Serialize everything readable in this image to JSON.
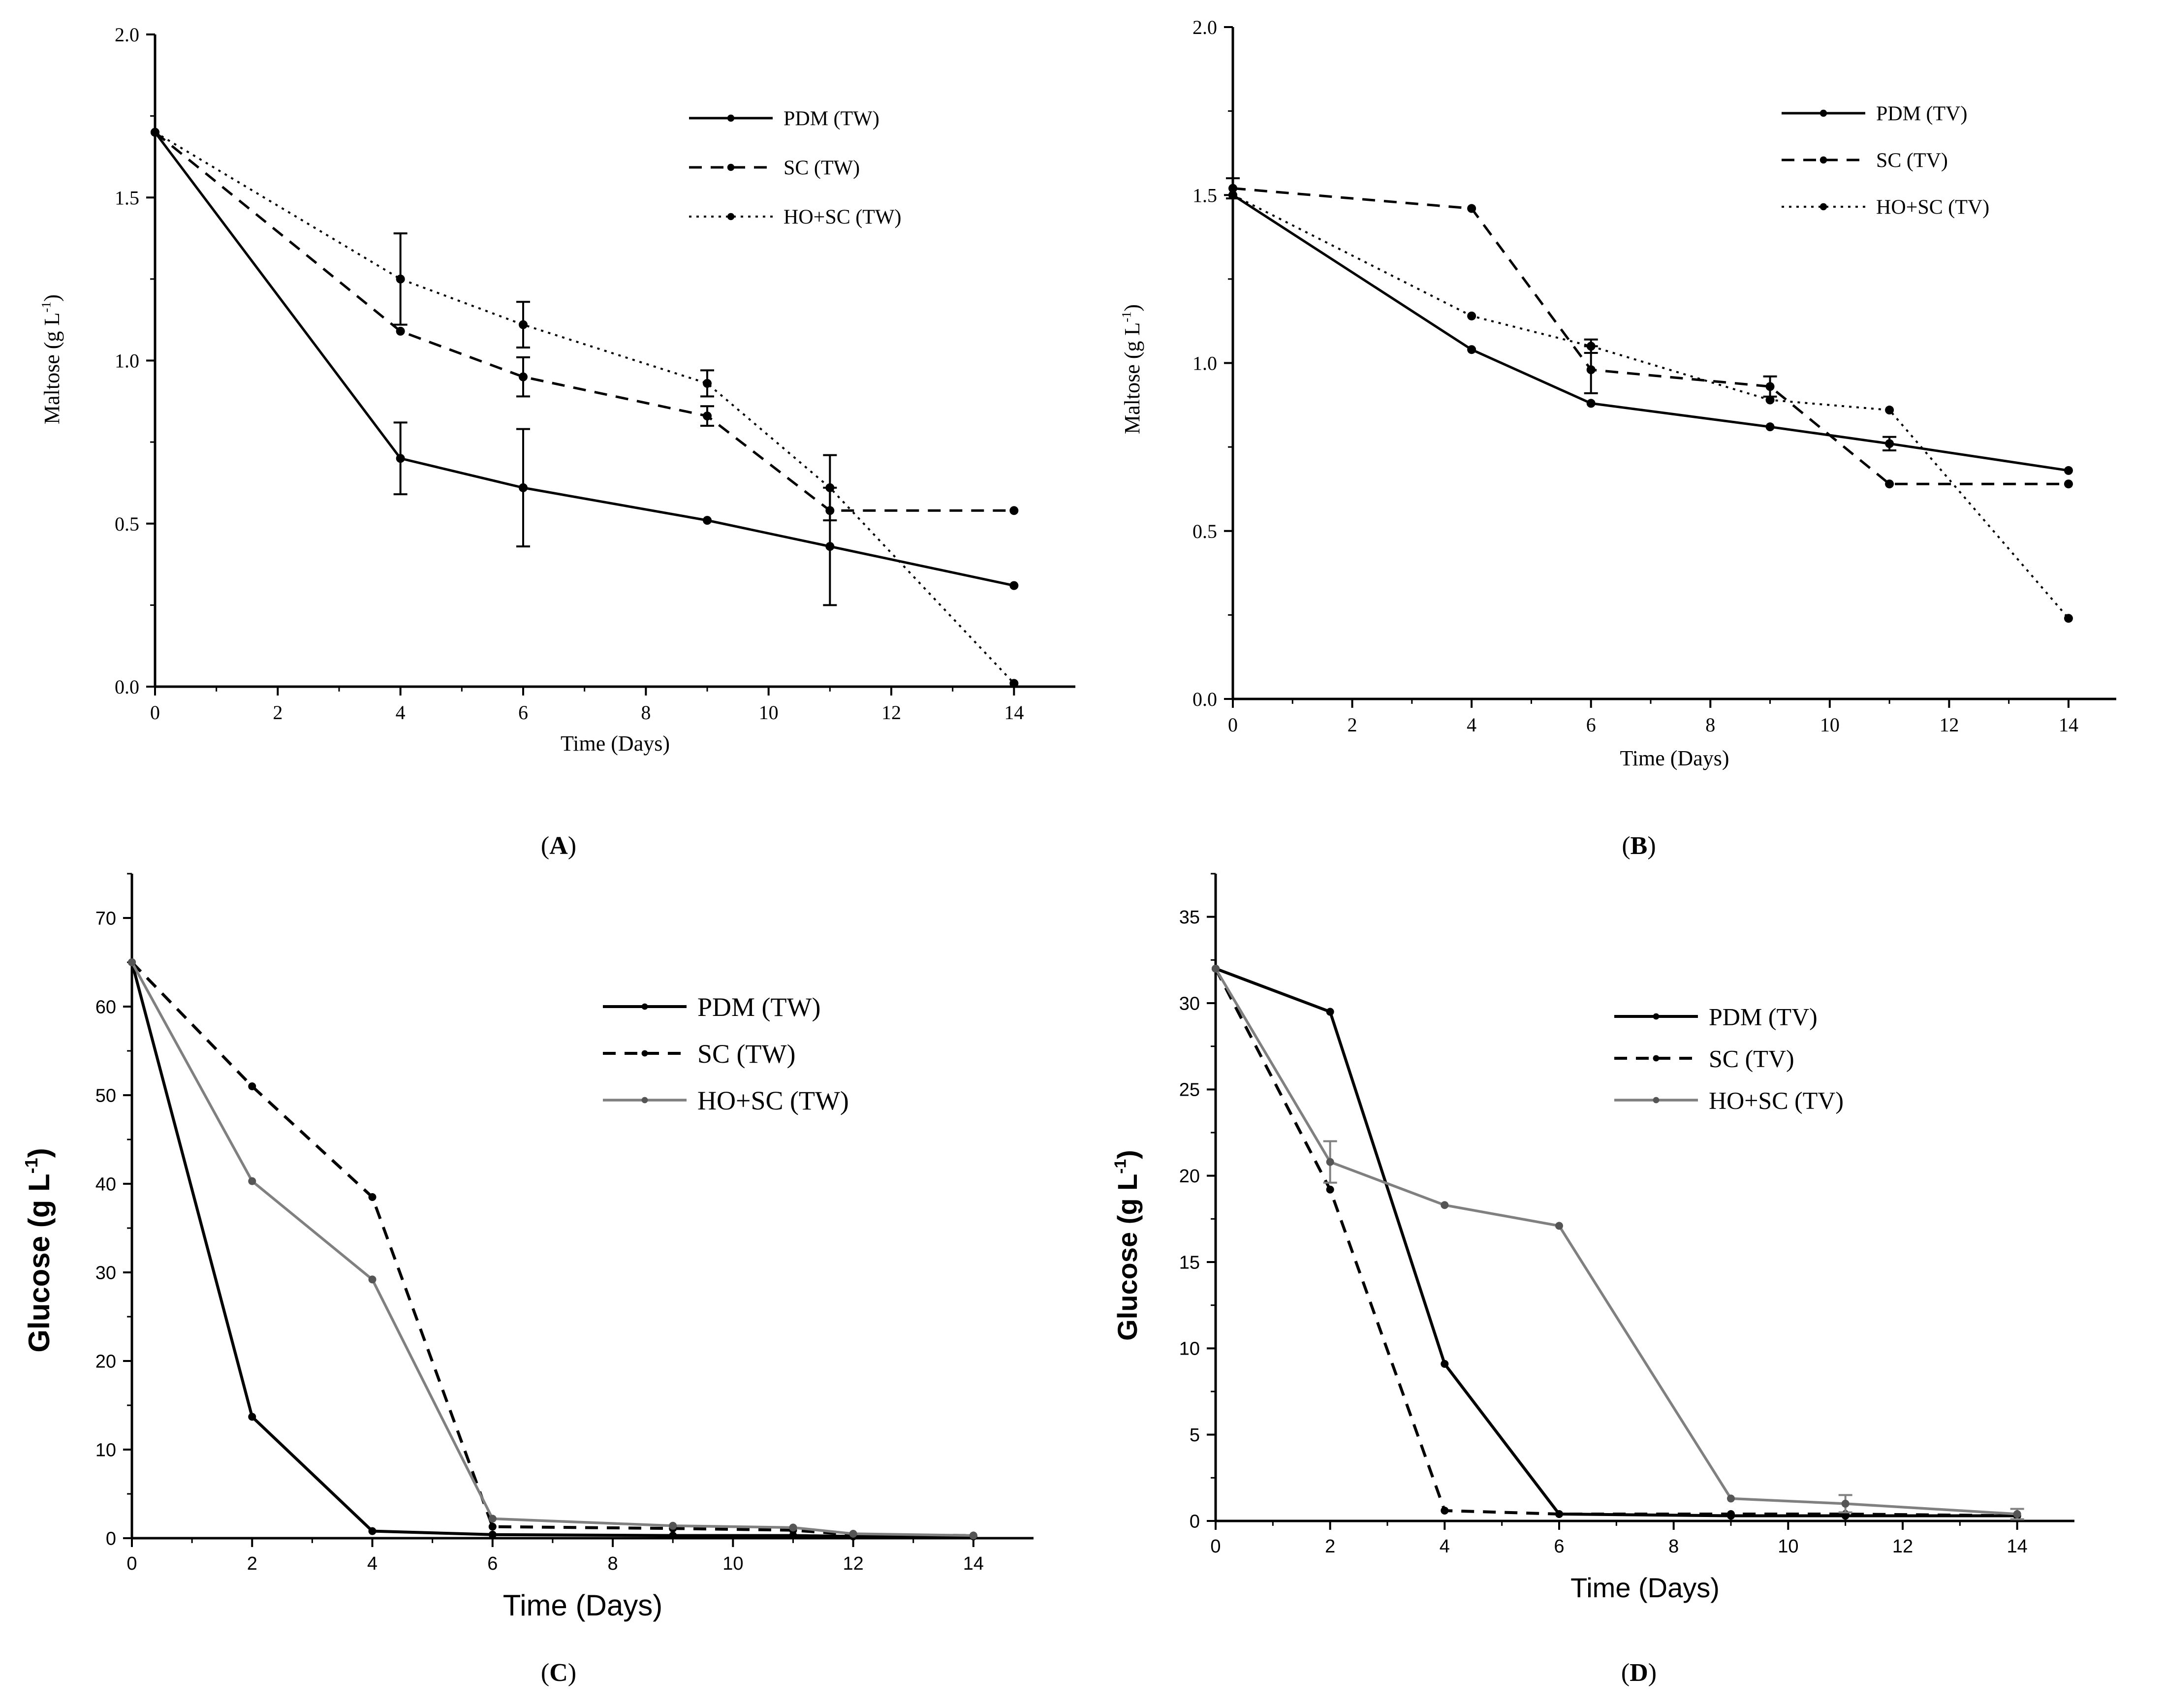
{
  "chart_data": [
    {
      "type": "line",
      "panel_label": "A",
      "caption": "(A)",
      "xlabel": "Time (Days)",
      "ylabel": "Maltose (g L-1)",
      "ylabel_parts": {
        "base": "Maltose (g L",
        "sup": "-1",
        "end": ")"
      },
      "xlim": [
        0,
        15
      ],
      "ylim": [
        0,
        2.0
      ],
      "xticks": [
        "0",
        "2",
        "4",
        "6",
        "8",
        "10",
        "12",
        "14"
      ],
      "yticks": [
        "0.0",
        "0.5",
        "1.0",
        "1.5",
        "2.0"
      ],
      "legend_position": "top-right",
      "series": [
        {
          "name": "PDM (TW)",
          "style": "solid",
          "x": [
            0,
            4,
            6,
            9,
            11,
            14
          ],
          "y": [
            1.7,
            0.7,
            0.61,
            0.51,
            0.43,
            0.31
          ],
          "err": [
            0,
            0.11,
            0.18,
            0,
            0.18,
            0
          ]
        },
        {
          "name": "SC (TW)",
          "style": "dashed",
          "x": [
            0,
            4,
            6,
            9,
            11,
            14
          ],
          "y": [
            1.7,
            1.09,
            0.95,
            0.83,
            0.54,
            0.54
          ],
          "err": [
            0,
            0,
            0.06,
            0.03,
            0,
            0
          ]
        },
        {
          "name": "HO+SC (TW)",
          "style": "dotted",
          "x": [
            0,
            4,
            6,
            9,
            11,
            14
          ],
          "y": [
            1.7,
            1.25,
            1.11,
            0.93,
            0.61,
            0.01
          ],
          "err": [
            0,
            0.14,
            0.07,
            0.04,
            0.1,
            0
          ]
        }
      ]
    },
    {
      "type": "line",
      "panel_label": "B",
      "caption": "(B)",
      "xlabel": "Time (Days)",
      "ylabel": "Maltose (g L-1)",
      "ylabel_parts": {
        "base": "Maltose (g L",
        "sup": "-1",
        "end": ")"
      },
      "xlim": [
        0,
        14.8
      ],
      "ylim": [
        0,
        2.0
      ],
      "xticks": [
        "0",
        "2",
        "4",
        "6",
        "8",
        "10",
        "12",
        "14"
      ],
      "yticks": [
        "0.0",
        "0.5",
        "1.0",
        "1.5",
        "2.0"
      ],
      "legend_position": "top-right",
      "series": [
        {
          "name": "PDM (TV)",
          "style": "solid",
          "x": [
            0,
            4,
            6,
            9,
            11,
            14
          ],
          "y": [
            1.5,
            1.04,
            0.88,
            0.81,
            0.76,
            0.68
          ],
          "err": [
            0,
            0,
            0,
            0,
            0.02,
            0
          ]
        },
        {
          "name": "SC (TV)",
          "style": "dashed",
          "x": [
            0,
            4,
            6,
            9,
            11,
            14
          ],
          "y": [
            1.52,
            1.46,
            0.98,
            0.93,
            0.64,
            0.64
          ],
          "err": [
            0.03,
            0,
            0.07,
            0.03,
            0,
            0
          ]
        },
        {
          "name": "HO+SC (TV)",
          "style": "dotted",
          "x": [
            0,
            4,
            6,
            9,
            11,
            14
          ],
          "y": [
            1.5,
            1.14,
            1.05,
            0.89,
            0.86,
            0.24
          ],
          "err": [
            0,
            0,
            0.02,
            0,
            0,
            0
          ]
        }
      ]
    },
    {
      "type": "line",
      "panel_label": "C",
      "caption": "(C)",
      "xlabel": "Time (Days)",
      "ylabel": "Glucose (g L-1)",
      "ylabel_parts": {
        "base": "Glucose (g L",
        "sup": "-1",
        "end": ")"
      },
      "xlim": [
        0,
        15
      ],
      "ylim": [
        0,
        75
      ],
      "xticks": [
        "0",
        "2",
        "4",
        "6",
        "8",
        "10",
        "12",
        "14"
      ],
      "yticks": [
        "0",
        "10",
        "20",
        "30",
        "40",
        "50",
        "60",
        "70"
      ],
      "legend_position": "top-right",
      "series": [
        {
          "name": "PDM (TW)",
          "style": "solid",
          "x": [
            0,
            2,
            4,
            6,
            9,
            11,
            12,
            14
          ],
          "y": [
            65,
            13.7,
            0.8,
            0.4,
            0.3,
            0.3,
            0.2,
            0.2
          ],
          "err": [
            0,
            0,
            0,
            0,
            0,
            0,
            0,
            0
          ]
        },
        {
          "name": "SC (TW)",
          "style": "dashed",
          "x": [
            0,
            2,
            4,
            6,
            9,
            11,
            12,
            14
          ],
          "y": [
            65,
            51,
            38.5,
            1.3,
            1.1,
            0.9,
            0.4,
            0.3
          ],
          "err": [
            0,
            0,
            0,
            0,
            0,
            0,
            0,
            0
          ]
        },
        {
          "name": "HO+SC (TW)",
          "style": "gray",
          "x": [
            0,
            2,
            4,
            6,
            9,
            11,
            12,
            14
          ],
          "y": [
            65,
            40.3,
            29.2,
            2.2,
            1.4,
            1.2,
            0.5,
            0.3
          ],
          "err": [
            0,
            0,
            0,
            0,
            0,
            0,
            0,
            0
          ]
        }
      ]
    },
    {
      "type": "line",
      "panel_label": "D",
      "caption": "(D)",
      "xlabel": "Time (Days)",
      "ylabel": "Glucose (g L-1)",
      "ylabel_parts": {
        "base": "Glucose (g L",
        "sup": "-1",
        "end": ")"
      },
      "xlim": [
        0,
        15
      ],
      "ylim": [
        0,
        37.5
      ],
      "xticks": [
        "0",
        "2",
        "4",
        "6",
        "8",
        "10",
        "12",
        "14"
      ],
      "yticks": [
        "0",
        "5",
        "10",
        "15",
        "20",
        "25",
        "30",
        "35"
      ],
      "legend_position": "top-right",
      "series": [
        {
          "name": "PDM (TV)",
          "style": "solid",
          "x": [
            0,
            2,
            4,
            6,
            9,
            11,
            14
          ],
          "y": [
            32,
            29.5,
            9.1,
            0.4,
            0.3,
            0.3,
            0.3
          ],
          "err": [
            0,
            0,
            0,
            0,
            0,
            0,
            0
          ]
        },
        {
          "name": "SC (TV)",
          "style": "dashed",
          "x": [
            0,
            2,
            4,
            6,
            9,
            11,
            14
          ],
          "y": [
            32,
            19.2,
            0.6,
            0.4,
            0.4,
            0.4,
            0.3
          ],
          "err": [
            0,
            0,
            0,
            0,
            0,
            0,
            0
          ]
        },
        {
          "name": "HO+SC (TV)",
          "style": "gray",
          "x": [
            0,
            2,
            4,
            6,
            9,
            11,
            14
          ],
          "y": [
            32,
            20.8,
            18.3,
            17.1,
            1.3,
            1.0,
            0.4
          ],
          "err": [
            0,
            1.2,
            0,
            0,
            0,
            0.5,
            0.3
          ]
        }
      ]
    }
  ]
}
